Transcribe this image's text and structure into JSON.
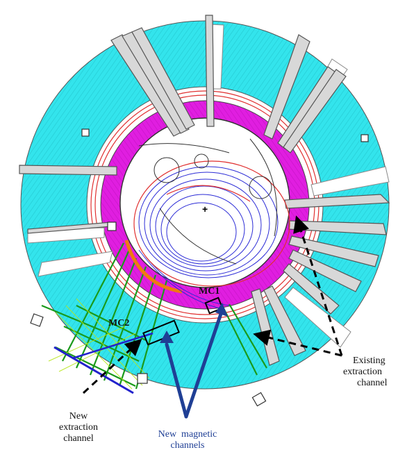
{
  "labels": {
    "mc1": "MC1",
    "mc2": "MC2",
    "new_extraction": [
      "New",
      "extraction",
      "channel"
    ],
    "new_magnetic": [
      "New  magnetic",
      "channels"
    ],
    "existing_extraction": [
      "Existing",
      "extraction",
      "channel"
    ]
  },
  "colors": {
    "yoke": "#33e4ec",
    "pole": "#e61ee6",
    "channel_green": "#22cc22",
    "orbit_blue": "#2b2bd6",
    "orbit_red": "#e03030",
    "orange": "#f07a10",
    "arrow_blue": "#1f3f95"
  }
}
